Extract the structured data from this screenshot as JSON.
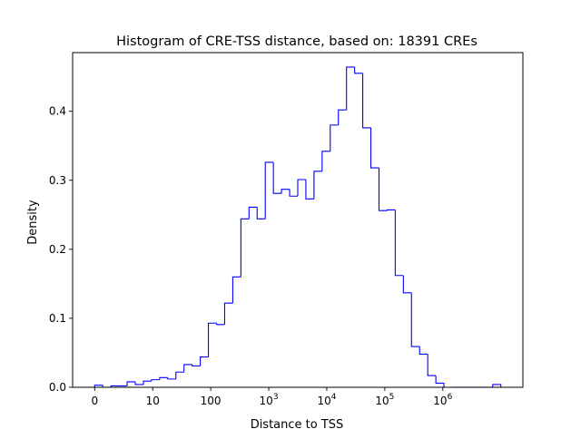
{
  "chart_data": {
    "type": "histogram",
    "title": "Histogram of CRE-TSS distance, based on: 18391 CREs",
    "xlabel": "Distance to TSS",
    "ylabel": "Density",
    "x_scale": "log10(distance + 1)",
    "xlim": [
      -0.38,
      7.38
    ],
    "ylim": [
      0,
      0.485
    ],
    "grid": false,
    "legend": "none",
    "line_color": "#0000ff",
    "x_ticks": [
      {
        "value": 0,
        "label": "0",
        "sup": ""
      },
      {
        "value": 1,
        "label": "10",
        "sup": ""
      },
      {
        "value": 2,
        "label": "100",
        "sup": ""
      },
      {
        "value": 3,
        "label": "10",
        "sup": "3"
      },
      {
        "value": 4,
        "label": "10",
        "sup": "4"
      },
      {
        "value": 5,
        "label": "10",
        "sup": "5"
      },
      {
        "value": 6,
        "label": "10",
        "sup": "6"
      }
    ],
    "y_ticks": [
      {
        "value": 0.0,
        "label": "0.0"
      },
      {
        "value": 0.1,
        "label": "0.1"
      },
      {
        "value": 0.2,
        "label": "0.2"
      },
      {
        "value": 0.3,
        "label": "0.3"
      },
      {
        "value": 0.4,
        "label": "0.4"
      }
    ],
    "bin_edges": [
      0.0,
      0.14,
      0.28,
      0.42,
      0.56,
      0.7,
      0.84,
      0.98,
      1.12,
      1.26,
      1.4,
      1.54,
      1.68,
      1.82,
      1.96,
      2.1,
      2.24,
      2.38,
      2.52,
      2.66,
      2.8,
      2.94,
      3.08,
      3.22,
      3.36,
      3.5,
      3.64,
      3.78,
      3.92,
      4.06,
      4.2,
      4.34,
      4.48,
      4.62,
      4.76,
      4.9,
      5.04,
      5.18,
      5.32,
      5.46,
      5.6,
      5.74,
      5.88,
      6.02,
      6.16,
      6.3,
      6.44,
      6.58,
      6.72,
      6.86,
      7.0
    ],
    "density": [
      0.003,
      0.0,
      0.002,
      0.002,
      0.008,
      0.004,
      0.009,
      0.011,
      0.014,
      0.012,
      0.022,
      0.033,
      0.031,
      0.044,
      0.093,
      0.091,
      0.122,
      0.16,
      0.244,
      0.261,
      0.244,
      0.326,
      0.281,
      0.287,
      0.277,
      0.301,
      0.273,
      0.313,
      0.342,
      0.38,
      0.402,
      0.464,
      0.455,
      0.376,
      0.318,
      0.256,
      0.257,
      0.162,
      0.137,
      0.059,
      0.048,
      0.017,
      0.006,
      0.0,
      0.0,
      0.0,
      0.0,
      0.0,
      0.0,
      0.004
    ]
  }
}
